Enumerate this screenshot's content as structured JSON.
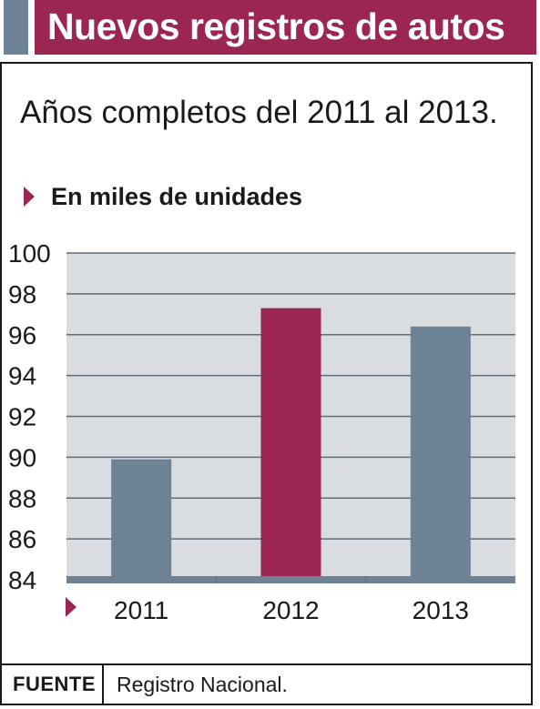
{
  "header": {
    "title": "Nuevos registros de autos"
  },
  "colors": {
    "accent": "#9b2653",
    "bar_default": "#6d8294",
    "plot_background": "#d9dce1"
  },
  "icons": {
    "unit_marker": "triangle-right-icon",
    "axis_marker": "triangle-right-icon"
  },
  "chart_data": {
    "type": "bar",
    "title": "Nuevos registros de autos",
    "subtitle": "Años completos del 2011 al 2013.",
    "ylabel": "En miles de unidades",
    "xlabel": "",
    "categories": [
      "2011",
      "2012",
      "2013"
    ],
    "values": [
      89.9,
      97.3,
      96.4
    ],
    "bar_colors": [
      "#6d8294",
      "#9b2653",
      "#6d8294"
    ],
    "ylim": [
      84,
      100
    ],
    "yticks": [
      "84",
      "86",
      "88",
      "90",
      "92",
      "94",
      "96",
      "98",
      "100"
    ],
    "grid": true,
    "legend": "none"
  },
  "footer": {
    "label": "FUENTE",
    "source": "Registro Nacional."
  }
}
